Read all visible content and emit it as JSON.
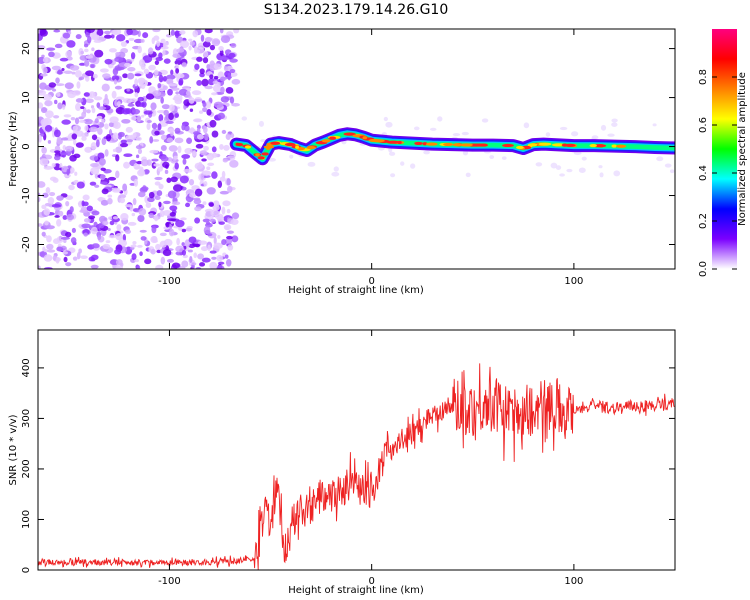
{
  "title": "S134.2023.179.14.26.G10",
  "chart_data": [
    {
      "type": "heatmap",
      "xlabel": "Height of straight line (km)",
      "ylabel": "Frequency (Hz)",
      "xlim": [
        -165,
        150
      ],
      "ylim": [
        -25,
        24
      ],
      "x_ticks": [
        -100,
        0,
        100
      ],
      "y_ticks": [
        -20,
        -10,
        0,
        10,
        20
      ],
      "grid": false,
      "noise_region": {
        "x_from": -165,
        "x_to": -67,
        "freq_range": [
          -25,
          24
        ]
      },
      "ridge": {
        "x": [
          -67,
          -62,
          -57,
          -54,
          -50,
          -46,
          -40,
          -36,
          -32,
          -28,
          -24,
          -20,
          -16,
          -12,
          -8,
          -4,
          0,
          10,
          20,
          30,
          40,
          50,
          60,
          70,
          75,
          80,
          85,
          90,
          100,
          110,
          120,
          130,
          140,
          150
        ],
        "freq": [
          0.5,
          0.2,
          -1.5,
          -2.5,
          0.5,
          0.8,
          0.4,
          -0.3,
          -0.8,
          0.3,
          0.9,
          1.6,
          2.3,
          2.6,
          2.4,
          1.9,
          1.3,
          0.9,
          0.7,
          0.5,
          0.4,
          0.3,
          0.3,
          0.2,
          -0.4,
          0.4,
          0.5,
          0.4,
          0.2,
          0.2,
          0.1,
          0.0,
          -0.2,
          -0.3
        ]
      },
      "colorbar": {
        "label": "Normalized spectral amplitude",
        "range": [
          0,
          1
        ],
        "ticks": [
          0.0,
          0.2,
          0.4,
          0.6,
          0.8
        ],
        "colors": [
          "#ffffff",
          "#7b00ff",
          "#0000ff",
          "#00ffff",
          "#00ff00",
          "#ffff00",
          "#ff8000",
          "#ff0000",
          "#ff007f"
        ]
      }
    },
    {
      "type": "line",
      "xlabel": "Height of straight line (km)",
      "ylabel": "SNR (10 * v/v)",
      "xlim": [
        -165,
        150
      ],
      "ylim": [
        0,
        475
      ],
      "x_ticks": [
        -100,
        0,
        100
      ],
      "y_ticks": [
        0,
        100,
        200,
        300,
        400
      ],
      "grid": false,
      "series": [
        {
          "color": "#ee2222",
          "x": [
            -165,
            -120,
            -80,
            -58,
            -55,
            -52,
            -50,
            -47,
            -44,
            -42,
            -40,
            -35,
            -30,
            -25,
            -20,
            -15,
            -10,
            -5,
            0,
            5,
            8,
            10,
            15,
            20,
            25,
            30,
            40,
            50,
            60,
            70,
            80,
            85,
            90,
            95,
            100,
            110,
            120,
            130,
            140,
            150
          ],
          "y": [
            15,
            15,
            15,
            20,
            70,
            150,
            70,
            180,
            60,
            40,
            90,
            110,
            120,
            150,
            140,
            160,
            170,
            150,
            160,
            200,
            270,
            230,
            260,
            270,
            290,
            310,
            325,
            320,
            330,
            305,
            320,
            300,
            340,
            310,
            320,
            325,
            320,
            325,
            325,
            330
          ]
        }
      ]
    }
  ]
}
